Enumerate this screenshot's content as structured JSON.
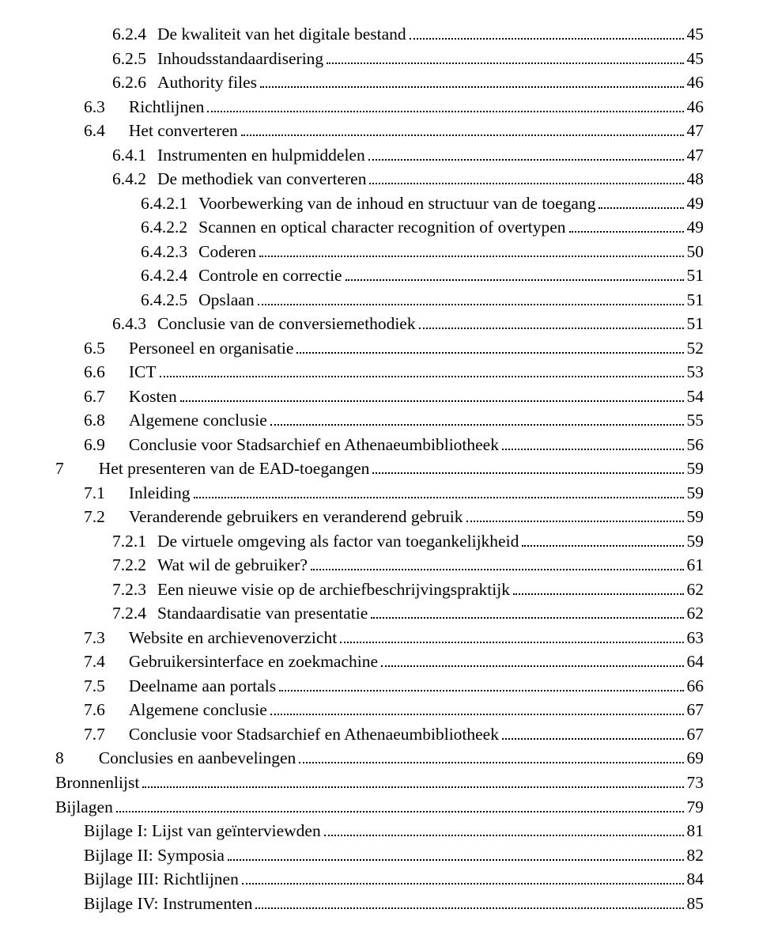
{
  "entries": [
    {
      "level": 2,
      "num": "6.2.4",
      "gap": "tight",
      "title": "De kwaliteit van het digitale bestand",
      "page": "45"
    },
    {
      "level": 2,
      "num": "6.2.5",
      "gap": "tight",
      "title": "Inhoudsstandaardisering",
      "page": "45"
    },
    {
      "level": 2,
      "num": "6.2.6",
      "gap": "tight",
      "title": "Authority files",
      "page": "46"
    },
    {
      "level": 1,
      "num": "6.3",
      "gap": "med",
      "title": "Richtlijnen",
      "page": "46"
    },
    {
      "level": 1,
      "num": "6.4",
      "gap": "med",
      "title": "Het converteren",
      "page": "47"
    },
    {
      "level": 2,
      "num": "6.4.1",
      "gap": "tight",
      "title": "Instrumenten en hulpmiddelen",
      "page": "47"
    },
    {
      "level": 2,
      "num": "6.4.2",
      "gap": "tight",
      "title": "De methodiek van converteren",
      "page": "48"
    },
    {
      "level": 3,
      "num": "6.4.2.1",
      "gap": "tight",
      "title": "Voorbewerking van de inhoud en structuur van de toegang",
      "page": "49"
    },
    {
      "level": 3,
      "num": "6.4.2.2",
      "gap": "tight",
      "title": "Scannen en optical character recognition of overtypen",
      "page": "49"
    },
    {
      "level": 3,
      "num": "6.4.2.3",
      "gap": "tight",
      "title": "Coderen",
      "page": "50"
    },
    {
      "level": 3,
      "num": "6.4.2.4",
      "gap": "tight",
      "title": "Controle en correctie",
      "page": "51"
    },
    {
      "level": 3,
      "num": "6.4.2.5",
      "gap": "tight",
      "title": "Opslaan",
      "page": "51"
    },
    {
      "level": 2,
      "num": "6.4.3",
      "gap": "tight",
      "title": "Conclusie van de conversiemethodiek",
      "page": "51"
    },
    {
      "level": 1,
      "num": "6.5",
      "gap": "med",
      "title": "Personeel en organisatie",
      "page": "52"
    },
    {
      "level": 1,
      "num": "6.6",
      "gap": "med",
      "title": "ICT",
      "page": "53"
    },
    {
      "level": 1,
      "num": "6.7",
      "gap": "med",
      "title": "Kosten",
      "page": "54"
    },
    {
      "level": 1,
      "num": "6.8",
      "gap": "med",
      "title": "Algemene conclusie",
      "page": "55"
    },
    {
      "level": 1,
      "num": "6.9",
      "gap": "med",
      "title": "Conclusie voor Stadsarchief en Athenaeumbibliotheek",
      "page": "56"
    },
    {
      "level": 0,
      "num": "7",
      "gap": "wide",
      "title": "Het presenteren van de EAD-toegangen",
      "page": " 59"
    },
    {
      "level": 1,
      "num": "7.1",
      "gap": "med",
      "title": "Inleiding",
      "page": "59"
    },
    {
      "level": 1,
      "num": "7.2",
      "gap": "med",
      "title": "Veranderende gebruikers en veranderend gebruik",
      "page": "59"
    },
    {
      "level": 2,
      "num": "7.2.1",
      "gap": "tight",
      "title": "De virtuele omgeving als factor van toegankelijkheid",
      "page": "59"
    },
    {
      "level": 2,
      "num": "7.2.2",
      "gap": "tight",
      "title": "Wat wil de gebruiker?",
      "page": "61"
    },
    {
      "level": 2,
      "num": "7.2.3",
      "gap": "tight",
      "title": "Een nieuwe visie op de archiefbeschrijvingspraktijk",
      "page": "62"
    },
    {
      "level": 2,
      "num": "7.2.4",
      "gap": "tight",
      "title": "Standaardisatie van presentatie",
      "page": "62"
    },
    {
      "level": 1,
      "num": "7.3",
      "gap": "med",
      "title": "Website en archievenoverzicht",
      "page": "63"
    },
    {
      "level": 1,
      "num": "7.4",
      "gap": "med",
      "title": "Gebruikersinterface en zoekmachine",
      "page": "64"
    },
    {
      "level": 1,
      "num": "7.5",
      "gap": "med",
      "title": "Deelname aan portals",
      "page": "66"
    },
    {
      "level": 1,
      "num": "7.6",
      "gap": "med",
      "title": "Algemene conclusie",
      "page": "67"
    },
    {
      "level": 1,
      "num": "7.7",
      "gap": "med",
      "title": "Conclusie voor Stadsarchief en Athenaeumbibliotheek",
      "page": "67"
    },
    {
      "level": 0,
      "num": "8",
      "gap": "wide",
      "title": "Conclusies en aanbevelingen",
      "page": " 69"
    },
    {
      "level": 0,
      "num": "",
      "gap": "none",
      "title": "Bronnenlijst",
      "page": " 73"
    },
    {
      "level": 0,
      "num": "",
      "gap": "none",
      "title": "Bijlagen",
      "page": " 79"
    },
    {
      "level": 1,
      "num": "",
      "gap": "none",
      "title": "Bijlage I: Lijst van geïnterviewden",
      "page": "81"
    },
    {
      "level": 1,
      "num": "",
      "gap": "none",
      "title": "Bijlage II: Symposia",
      "page": "82"
    },
    {
      "level": 1,
      "num": "",
      "gap": "none",
      "title": "Bijlage III: Richtlijnen",
      "page": "84"
    },
    {
      "level": 1,
      "num": "",
      "gap": "none",
      "title": "Bijlage IV: Instrumenten",
      "page": "85"
    }
  ]
}
